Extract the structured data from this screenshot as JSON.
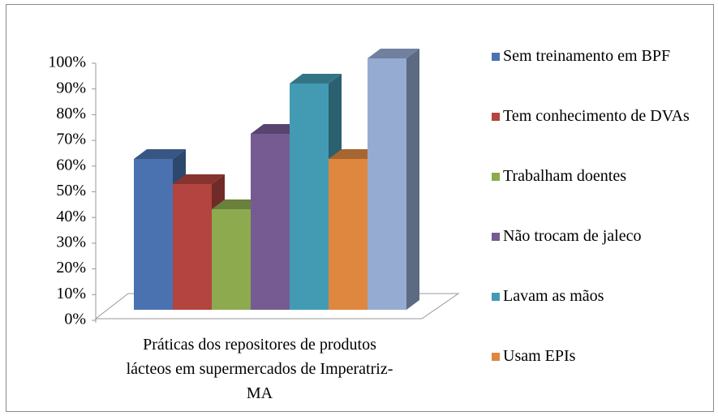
{
  "chart_data": {
    "type": "bar3d",
    "categories": [
      "Práticas dos repositores de produtos lácteos em supermercados de Imperatriz-MA"
    ],
    "series": [
      {
        "name": "Sem treinamento em BPF",
        "color": "#4a72b0",
        "values": [
          60
        ]
      },
      {
        "name": "Tem conhecimento de DVAs",
        "color": "#b4443f",
        "values": [
          50
        ]
      },
      {
        "name": "Trabalham doentes",
        "color": "#8daa4f",
        "values": [
          40
        ]
      },
      {
        "name": "Não trocam de jaleco",
        "color": "#755b92",
        "values": [
          70
        ]
      },
      {
        "name": "Lavam as mãos",
        "color": "#439bb3",
        "values": [
          90
        ]
      },
      {
        "name": "Usam EPIs",
        "color": "#df873f",
        "values": [
          60
        ]
      },
      {
        "name": null,
        "color": "#95abd2",
        "values": [
          100
        ]
      }
    ],
    "ylim": [
      0,
      100
    ],
    "yticks": [
      {
        "value": 0,
        "label": "0%"
      },
      {
        "value": 10,
        "label": "10%"
      },
      {
        "value": 20,
        "label": "20%"
      },
      {
        "value": 30,
        "label": "30%"
      },
      {
        "value": 40,
        "label": "40%"
      },
      {
        "value": 50,
        "label": "50%"
      },
      {
        "value": 60,
        "label": "60%"
      },
      {
        "value": 70,
        "label": "70%"
      },
      {
        "value": 80,
        "label": "80%"
      },
      {
        "value": 90,
        "label": "90%"
      },
      {
        "value": 100,
        "label": "100%"
      }
    ],
    "legend": "right"
  }
}
